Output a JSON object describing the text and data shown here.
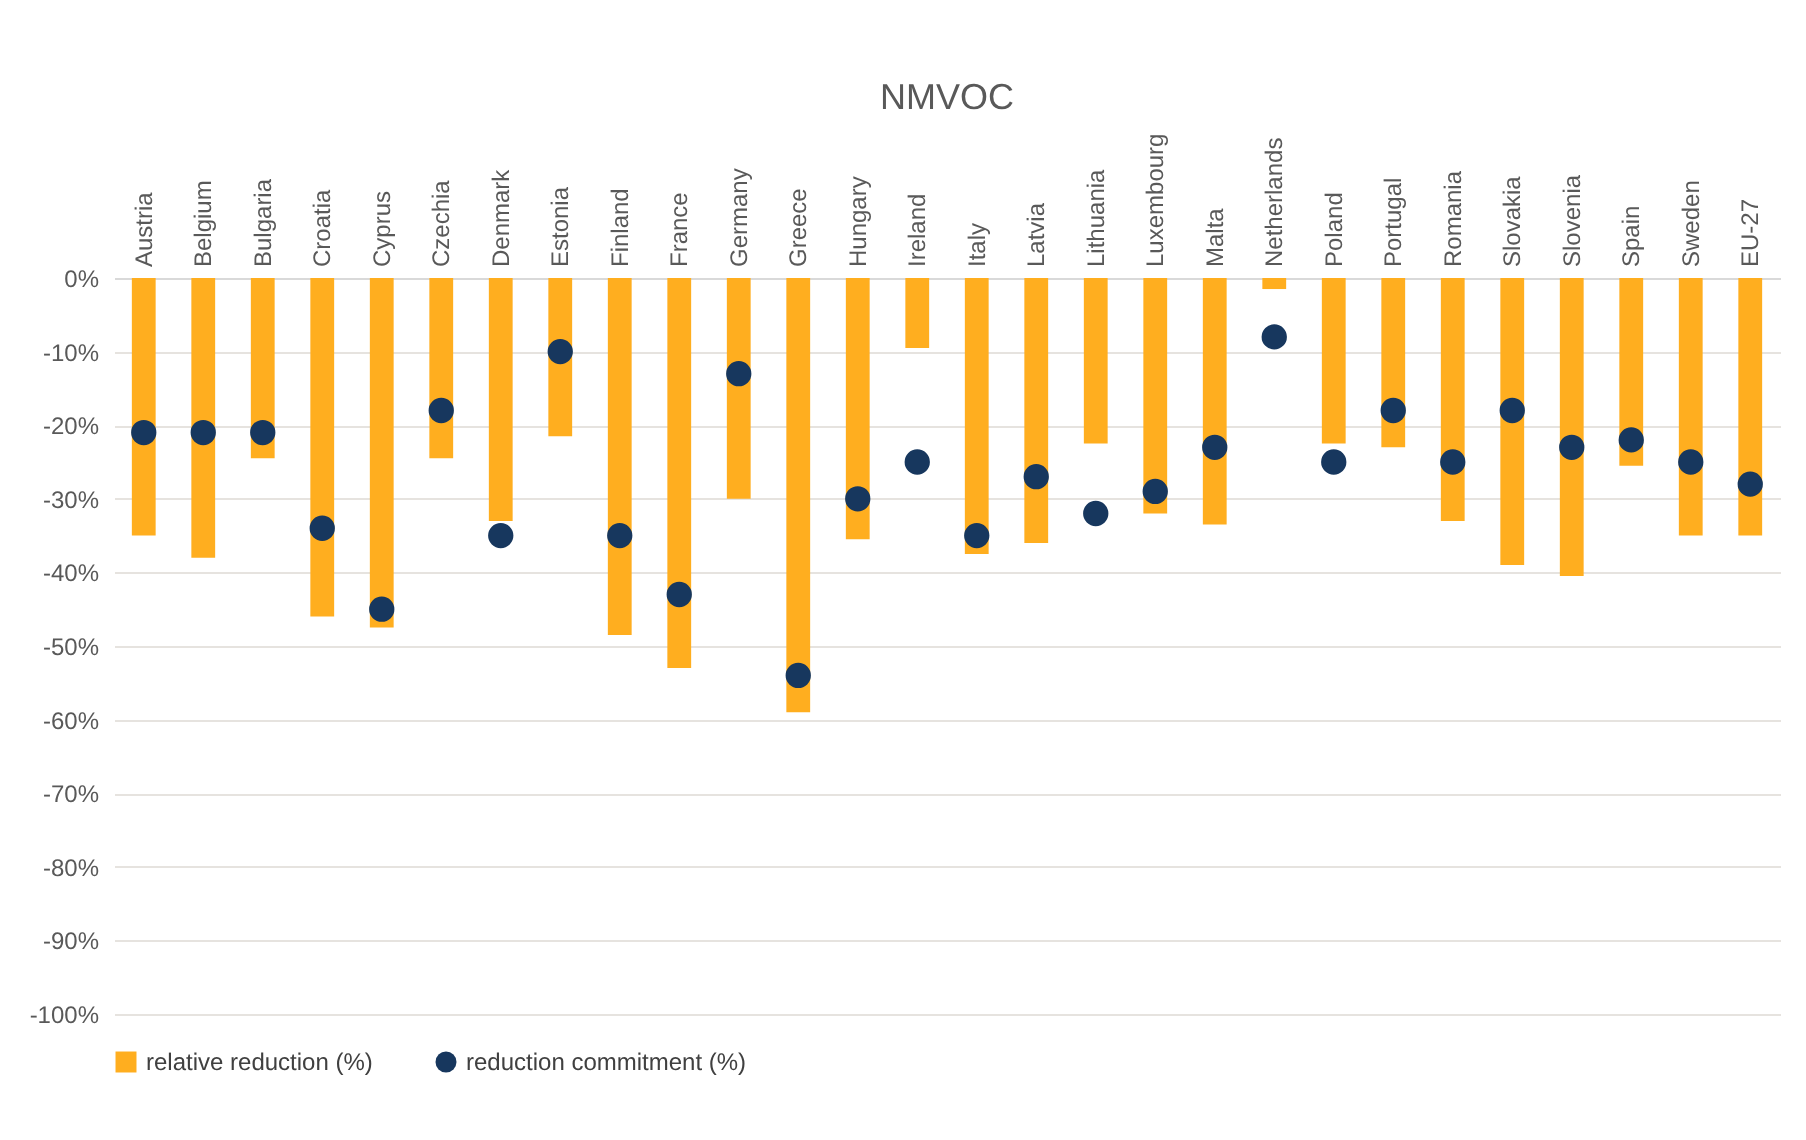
{
  "chart_data": {
    "type": "bar",
    "title": "NMVOC",
    "categories": [
      "Austria",
      "Belgium",
      "Bulgaria",
      "Croatia",
      "Cyprus",
      "Czechia",
      "Denmark",
      "Estonia",
      "Finland",
      "France",
      "Germany",
      "Greece",
      "Hungary",
      "Ireland",
      "Italy",
      "Latvia",
      "Lithuania",
      "Luxembourg",
      "Malta",
      "Netherlands",
      "Poland",
      "Portugal",
      "Romania",
      "Slovakia",
      "Slovenia",
      "Spain",
      "Sweden",
      "EU-27"
    ],
    "series": [
      {
        "name": "relative reduction (%)",
        "color": "#ffae1f",
        "values": [
          -35,
          -38,
          -24.5,
          -46,
          -47.5,
          -24.5,
          -33,
          -21.5,
          -48.5,
          -53,
          -30,
          -59,
          -35.5,
          -9.5,
          -37.5,
          -36,
          -22.5,
          -32,
          -33.5,
          -1.5,
          -22.5,
          -23,
          -33,
          -39,
          -40.5,
          -25.5,
          -35,
          -35
        ]
      },
      {
        "name": "reduction commitment (%)",
        "type": "scatter",
        "color": "#17375e",
        "marker": "circle",
        "values": [
          -21,
          -21,
          -21,
          -34,
          -45,
          -18,
          -35,
          -10,
          -35,
          -43,
          -13,
          -54,
          -30,
          -25,
          -35,
          -27,
          -32,
          -29,
          -23,
          -8,
          -25,
          -18,
          -25,
          -18,
          -23,
          -22,
          -25,
          -28
        ]
      }
    ],
    "ylim": [
      -100,
      0
    ],
    "yticks": [
      {
        "value": 0,
        "label": "0%"
      },
      {
        "value": -10,
        "label": "-10%"
      },
      {
        "value": -20,
        "label": "-20%"
      },
      {
        "value": -30,
        "label": "-30%"
      },
      {
        "value": -40,
        "label": "-40%"
      },
      {
        "value": -50,
        "label": "-50%"
      },
      {
        "value": -60,
        "label": "-60%"
      },
      {
        "value": -70,
        "label": "-70%"
      },
      {
        "value": -80,
        "label": "-80%"
      },
      {
        "value": -90,
        "label": "-90%"
      },
      {
        "value": -100,
        "label": "-100%"
      }
    ],
    "grid": "y",
    "legend": "bottom"
  }
}
